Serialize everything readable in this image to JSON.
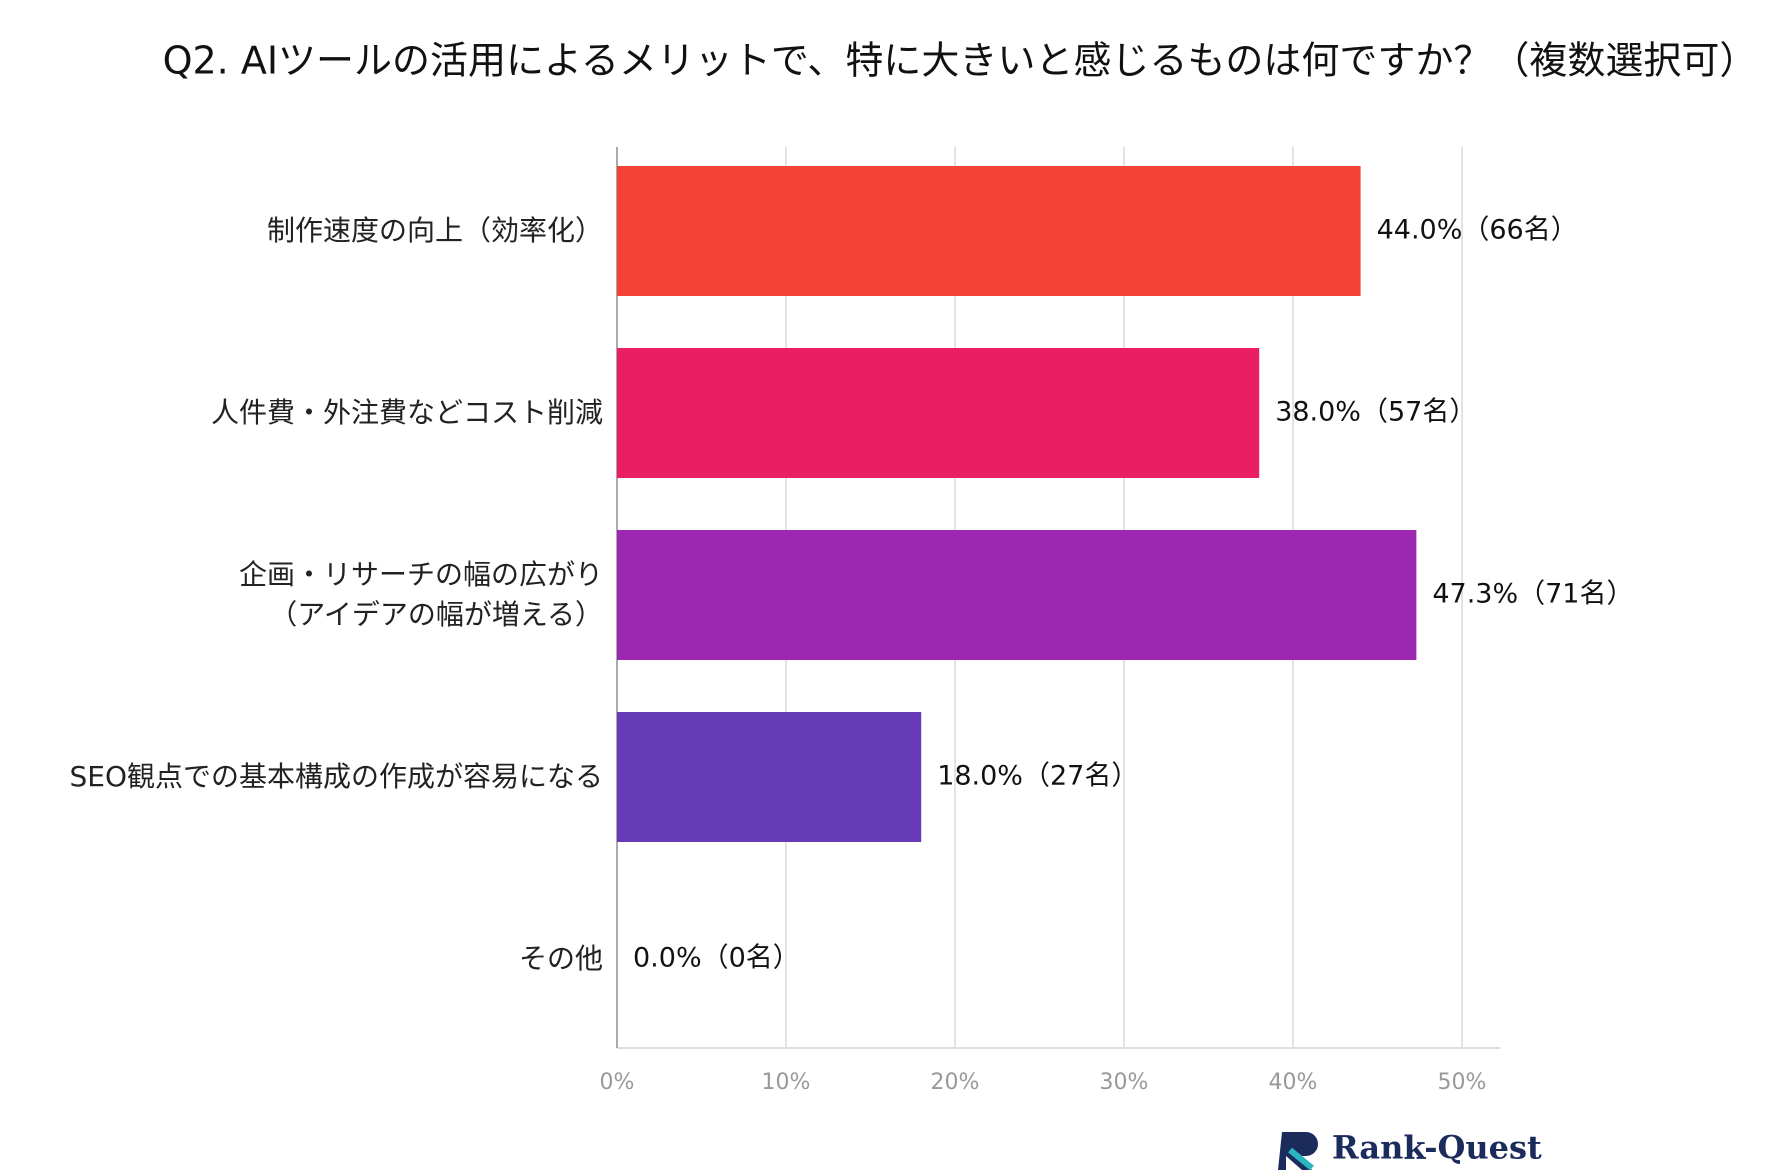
{
  "chart_data": {
    "type": "bar",
    "orientation": "horizontal",
    "title": "Q2. AIツールの活用によるメリットで、特に大きいと感じるものは何ですか？（複数選択可）",
    "categories": [
      "制作速度の向上（効率化）",
      "人件費・外注費などコスト削減",
      "企画・リサーチの幅の広がり\n（アイデアの幅が増える）",
      "SEO観点での基本構成の作成が容易になる",
      "その他"
    ],
    "values": [
      44.0,
      38.0,
      47.3,
      18.0,
      0.0
    ],
    "value_labels": [
      "44.0%（66名）",
      "38.0%（57名）",
      "47.3%（71名）",
      "18.0%（27名）",
      "0.0%（0名）"
    ],
    "colors": [
      "#f44336",
      "#e91e63",
      "#9c27b0",
      "#673ab7",
      "#3f51b5"
    ],
    "xlim": [
      0,
      50
    ],
    "xticks": [
      {
        "value": 0,
        "label": "0%"
      },
      {
        "value": 10,
        "label": "10%"
      },
      {
        "value": 20,
        "label": "20%"
      },
      {
        "value": 30,
        "label": "30%"
      },
      {
        "value": 40,
        "label": "40%"
      },
      {
        "value": 50,
        "label": "50%"
      }
    ],
    "grid": true,
    "logo": "Rank-Quest"
  }
}
